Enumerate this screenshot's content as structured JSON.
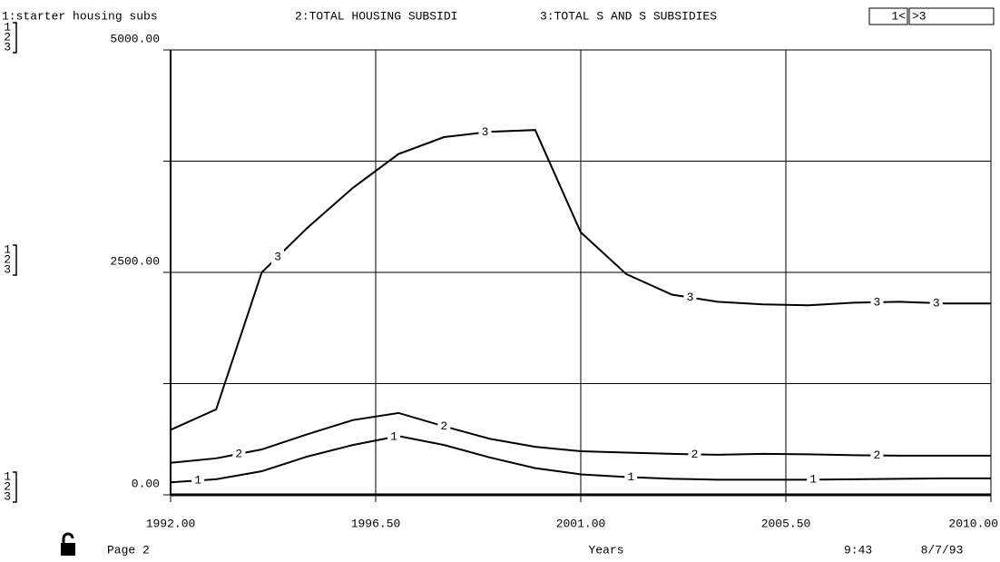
{
  "chart_data": {
    "type": "line",
    "xlabel": "Years",
    "x": [
      1992,
      1993,
      1994,
      1995,
      1996,
      1997,
      1998,
      1999,
      2000,
      2001,
      2002,
      2003,
      2004,
      2005,
      2006,
      2007,
      2008,
      2009,
      2010
    ],
    "series": [
      {
        "name": "1:starter housing subs",
        "label": "1",
        "color": "#000000",
        "values": [
          140,
          175,
          265,
          430,
          560,
          660,
          560,
          420,
          300,
          230,
          200,
          180,
          170,
          170,
          170,
          175,
          180,
          185,
          185
        ]
      },
      {
        "name": "2:TOTAL HOUSING SUBSIDI",
        "label": "2",
        "color": "#000000",
        "values": [
          360,
          410,
          510,
          680,
          840,
          920,
          770,
          630,
          540,
          490,
          475,
          460,
          450,
          460,
          455,
          445,
          440,
          440,
          440
        ]
      },
      {
        "name": "3:TOTAL S AND S SUBSIDIES",
        "label": "3",
        "color": "#000000",
        "values": [
          730,
          960,
          2500,
          3000,
          3450,
          3830,
          4020,
          4080,
          4100,
          2950,
          2480,
          2250,
          2170,
          2140,
          2130,
          2160,
          2170,
          2150,
          2150
        ]
      }
    ],
    "xlim": [
      1992,
      2010
    ],
    "xticks": [
      {
        "value": 1992,
        "label": "1992.00"
      },
      {
        "value": 1996.5,
        "label": "1996.50"
      },
      {
        "value": 2001,
        "label": "2001.00"
      },
      {
        "value": 2005.5,
        "label": "2005.50"
      },
      {
        "value": 2010,
        "label": "2010.00"
      }
    ],
    "ylim": [
      0,
      5000
    ],
    "yticks": [
      {
        "value": 0,
        "label": "0.00"
      },
      {
        "value": 2500,
        "label": "2500.00"
      },
      {
        "value": 5000,
        "label": "5000.00"
      }
    ],
    "yminor": [
      1250,
      3750
    ],
    "grid": true
  },
  "ui": {
    "page": "Page 2",
    "time": "9:43",
    "date": "8/7/93",
    "nav": [
      "1<",
      ">3"
    ]
  }
}
